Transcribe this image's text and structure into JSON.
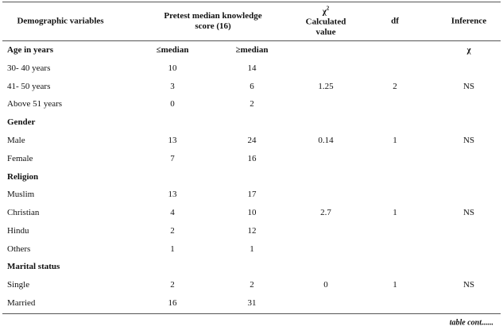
{
  "table": {
    "header": {
      "variables": "Demographic variables",
      "score": "Pretest median knowledge score (16)",
      "chi_symbol": "χ",
      "chi_power": "2",
      "chi_label": "Calculated value",
      "df": "df",
      "inference": "Inference"
    },
    "sections": [
      {
        "title": "Age in years",
        "subheaders": [
          "≤median",
          "≥median"
        ],
        "inference_header": "χ",
        "rows": [
          {
            "label": "30- 40 years",
            "values": [
              10,
              14
            ]
          },
          {
            "label": "41- 50 years",
            "values": [
              3,
              6
            ]
          },
          {
            "label": "Above 51 years",
            "values": [
              0,
              2
            ]
          }
        ],
        "chi": 1.25,
        "df": 2,
        "inference": "NS"
      },
      {
        "title": "Gender",
        "rows": [
          {
            "label": "Male",
            "values": [
              13,
              24
            ]
          },
          {
            "label": "Female",
            "values": [
              7,
              16
            ]
          }
        ],
        "chi": 0.14,
        "df": 1,
        "inference": "NS"
      },
      {
        "title": "Religion",
        "rows": [
          {
            "label": "Muslim",
            "values": [
              13,
              17
            ]
          },
          {
            "label": "Christian",
            "values": [
              4,
              10
            ]
          },
          {
            "label": "Hindu",
            "values": [
              2,
              12
            ]
          },
          {
            "label": "Others",
            "values": [
              1,
              1
            ]
          }
        ],
        "chi": 2.7,
        "df": 1,
        "inference": "NS"
      },
      {
        "title": "Marital status",
        "rows": [
          {
            "label": "Single",
            "values": [
              2,
              2
            ]
          },
          {
            "label": "Married",
            "values": [
              16,
              31
            ]
          }
        ],
        "chi": 0,
        "df": 1,
        "inference": "NS"
      }
    ],
    "footer": "table cont......"
  }
}
